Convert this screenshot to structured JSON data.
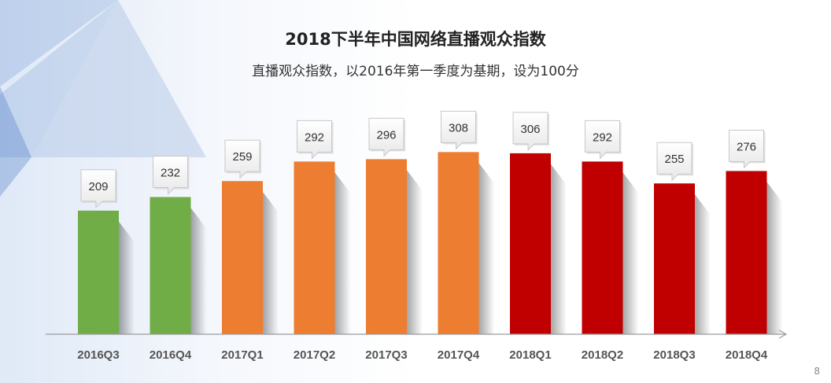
{
  "chart_data": {
    "type": "bar",
    "title": "2018下半年中国网络直播观众指数",
    "subtitle": "直播观众指数，以2016年第一季度为基期，设为100分",
    "categories": [
      "2016Q3",
      "2016Q4",
      "2017Q1",
      "2017Q2",
      "2017Q3",
      "2017Q4",
      "2018Q1",
      "2018Q2",
      "2018Q3",
      "2018Q4"
    ],
    "values": [
      209,
      232,
      259,
      292,
      296,
      308,
      306,
      292,
      255,
      276
    ],
    "colors": [
      "#70ad47",
      "#70ad47",
      "#ed7d31",
      "#ed7d31",
      "#ed7d31",
      "#ed7d31",
      "#c00000",
      "#c00000",
      "#c00000",
      "#c00000"
    ],
    "ylim": [
      0,
      330
    ],
    "xlabel": "",
    "ylabel": ""
  },
  "page_number": "8"
}
